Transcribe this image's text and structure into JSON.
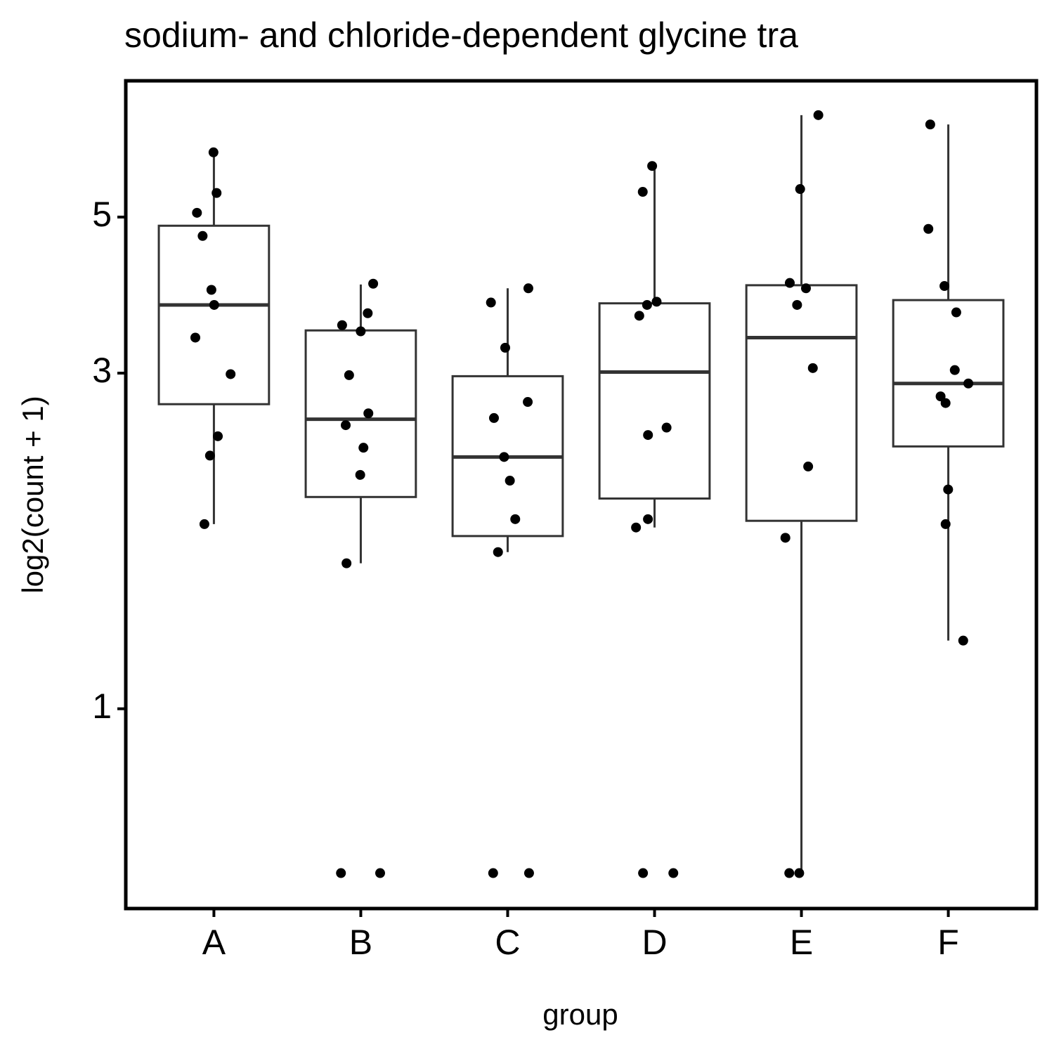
{
  "chart_data": {
    "type": "box",
    "title": "sodium- and chloride-dependent glycine tra",
    "x_label": "group",
    "y_label": "log2(count + 1)",
    "categories": [
      "A",
      "B",
      "C",
      "D",
      "E",
      "F"
    ],
    "boxes": [
      {
        "whisker_low": 1.83,
        "q1": 2.71,
        "median": 3.75,
        "q3": 4.86,
        "whisker_high": 6.18
      },
      {
        "whisker_low": 1.61,
        "q1": 2.0,
        "median": 2.58,
        "q3": 3.45,
        "whisker_high": 4.01
      },
      {
        "whisker_low": 1.67,
        "q1": 1.76,
        "median": 2.28,
        "q3": 2.97,
        "whisker_high": 3.96
      },
      {
        "whisker_low": 1.81,
        "q1": 1.99,
        "median": 3.01,
        "q3": 3.77,
        "whisker_high": 5.91
      },
      {
        "whisker_low": 0.584,
        "q1": 1.85,
        "median": 3.37,
        "q3": 4.0,
        "whisker_high": 6.98
      },
      {
        "whisker_low": 1.25,
        "q1": 2.36,
        "median": 2.9,
        "q3": 3.81,
        "whisker_high": 6.77
      }
    ],
    "points": [
      [
        6.18,
        5.41,
        5.07,
        4.7,
        3.94,
        3.75,
        3.37,
        2.99,
        2.44,
        2.29,
        1.83
      ],
      [
        4.02,
        3.65,
        3.51,
        3.44,
        2.98,
        2.63,
        2.53,
        2.35,
        2.15,
        1.61,
        0.584,
        0.584
      ],
      [
        3.96,
        3.78,
        3.26,
        2.73,
        2.59,
        2.28,
        2.11,
        1.86,
        1.67,
        0.584,
        0.584
      ],
      [
        5.91,
        5.43,
        3.79,
        3.75,
        3.62,
        2.51,
        2.45,
        1.86,
        1.81,
        0.584,
        0.584
      ],
      [
        6.98,
        5.48,
        4.03,
        3.96,
        3.75,
        3.05,
        2.21,
        1.75,
        0.584,
        0.584
      ],
      [
        6.77,
        4.81,
        3.99,
        3.66,
        3.03,
        2.9,
        2.78,
        2.72,
        2.05,
        1.83,
        1.25
      ]
    ],
    "box_color": "#333333",
    "point_color": "#000000",
    "log_scale": true,
    "ylim": [
      0.52,
      7.81
    ],
    "yticks": [
      1,
      3,
      5
    ]
  }
}
